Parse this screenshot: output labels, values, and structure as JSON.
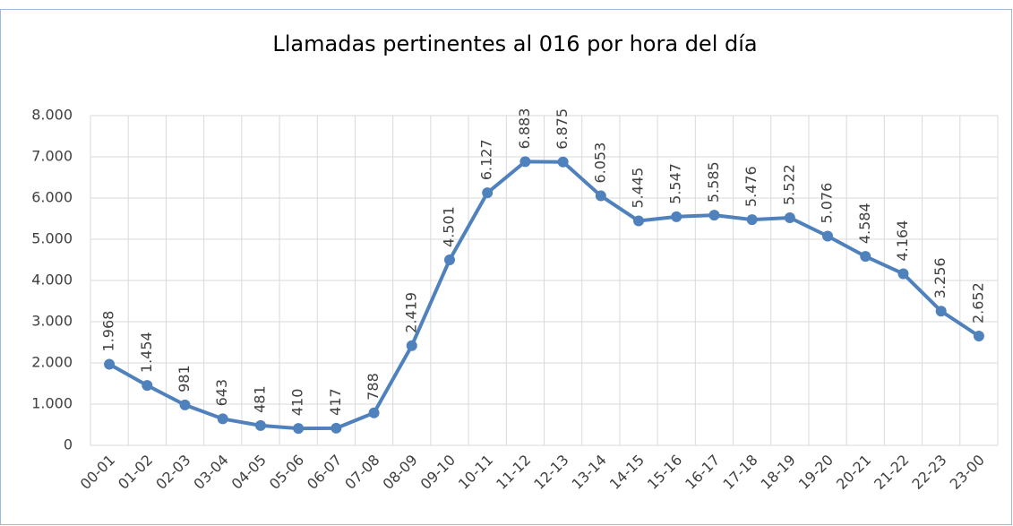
{
  "chart_data": {
    "type": "line",
    "title": "Llamadas pertinentes al 016 por hora del día",
    "categories": [
      "00-01",
      "01-02",
      "02-03",
      "03-04",
      "04-05",
      "05-06",
      "06-07",
      "07-08",
      "08-09",
      "09-10",
      "10-11",
      "11-12",
      "12-13",
      "13-14",
      "14-15",
      "15-16",
      "16-17",
      "17-18",
      "18-19",
      "19-20",
      "20-21",
      "21-22",
      "22-23",
      "23-00"
    ],
    "values": [
      1968,
      1454,
      981,
      643,
      481,
      410,
      417,
      788,
      2419,
      4501,
      6127,
      6883,
      6875,
      6053,
      5445,
      5547,
      5585,
      5476,
      5522,
      5076,
      4584,
      4164,
      3256,
      2652
    ],
    "value_labels": [
      "1.968",
      "1.454",
      "981",
      "643",
      "481",
      "410",
      "417",
      "788",
      "2.419",
      "4.501",
      "6.127",
      "6.883",
      "6.875",
      "6.053",
      "5.445",
      "5.547",
      "5.585",
      "5.476",
      "5.522",
      "5.076",
      "4.584",
      "4.164",
      "3.256",
      "2.652"
    ],
    "color": "#4f81bd",
    "ylim": [
      0,
      8000
    ],
    "yticks": [
      0,
      {
        "value": 1000,
        "label": "1.000"
      },
      {
        "value": 2000,
        "label": "2.000"
      },
      {
        "value": 3000,
        "label": "3.000"
      },
      {
        "value": 4000,
        "label": "4.000"
      },
      {
        "value": 5000,
        "label": "5.000"
      },
      {
        "value": 6000,
        "label": "6.000"
      },
      {
        "value": 7000,
        "label": "7.000"
      },
      {
        "value": 8000,
        "label": "8.000"
      }
    ],
    "grid": true
  }
}
